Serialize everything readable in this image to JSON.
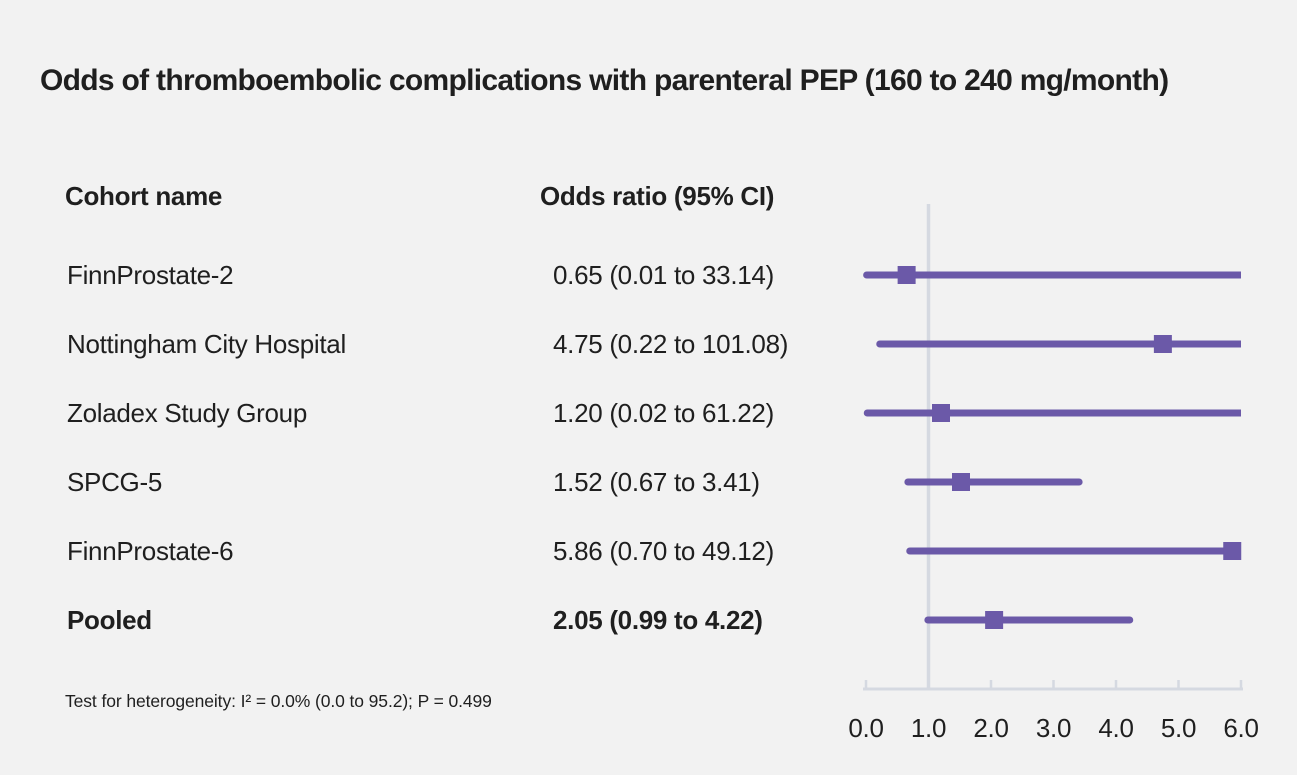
{
  "title": "Odds of thromboembolic complications with parenteral PEP (160 to 240 mg/month)",
  "columns": {
    "cohort": "Cohort name",
    "odds_ratio": "Odds ratio (95% CI)"
  },
  "footnote": "Test for heterogeneity: I² = 0.0% (0.0 to 95.2); P = 0.499",
  "colors": {
    "background": "#f2f2f2",
    "text": "#1f1f1f",
    "accent_purple": "#6b59a8",
    "axis_gray": "#d5d9e1"
  },
  "chart_data": {
    "type": "forest",
    "title": "Odds of thromboembolic complications with parenteral PEP (160 to 240 mg/month)",
    "xlabel": "",
    "ylabel": "",
    "x_axis": {
      "min": 0,
      "max": 6,
      "tick_labels": [
        "0.0",
        "1.0",
        "2.0",
        "3.0",
        "4.0",
        "5.0",
        "6.0"
      ],
      "tick_values": [
        0,
        1,
        2,
        3,
        4,
        5,
        6
      ],
      "reference_line": 1.0
    },
    "grid": false,
    "legend": null,
    "rows": [
      {
        "cohort": "FinnProstate-2",
        "or_ci": "0.65 (0.01 to 33.14)",
        "or": 0.65,
        "lo": 0.01,
        "hi": 33.14,
        "bold": false
      },
      {
        "cohort": "Nottingham City Hospital",
        "or_ci": "4.75 (0.22 to 101.08)",
        "or": 4.75,
        "lo": 0.22,
        "hi": 101.08,
        "bold": false
      },
      {
        "cohort": "Zoladex Study Group",
        "or_ci": "1.20 (0.02 to 61.22)",
        "or": 1.2,
        "lo": 0.02,
        "hi": 61.22,
        "bold": false
      },
      {
        "cohort": "SPCG-5",
        "or_ci": "1.52 (0.67 to 3.41)",
        "or": 1.52,
        "lo": 0.67,
        "hi": 3.41,
        "bold": false
      },
      {
        "cohort": "FinnProstate-6",
        "or_ci": "5.86 (0.70 to 49.12)",
        "or": 5.86,
        "lo": 0.7,
        "hi": 49.12,
        "bold": false
      },
      {
        "cohort": "Pooled",
        "or_ci": "2.05 (0.99 to 4.22)",
        "or": 2.05,
        "lo": 0.99,
        "hi": 4.22,
        "bold": true
      }
    ]
  }
}
